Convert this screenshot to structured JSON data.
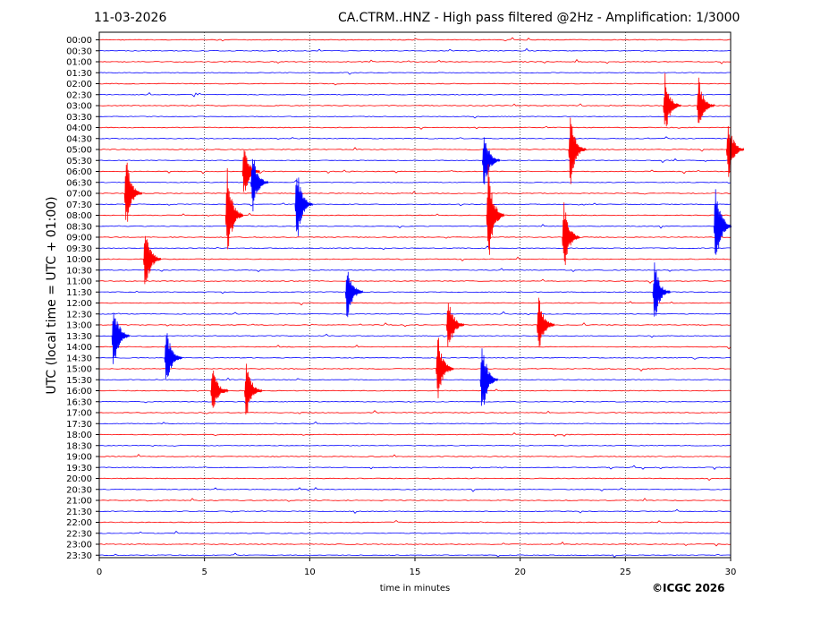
{
  "header": {
    "date": "11-03-2026",
    "title": "CA.CTRM..HNZ - High pass filtered @2Hz - Amplification: 1/3000"
  },
  "footer": {
    "copyright": "©ICGC 2026"
  },
  "chart_data": {
    "type": "line",
    "xlabel": "time in minutes",
    "ylabel": "UTC (local time = UTC + 01:00)",
    "xlim": [
      0,
      30
    ],
    "x_ticks": [
      0,
      5,
      10,
      15,
      20,
      25,
      30
    ],
    "grid": "vertical dotted at 5-minute intervals",
    "trace_colors": [
      "#ff0000",
      "#0000ff"
    ],
    "row_labels": [
      "00:00",
      "00:30",
      "01:00",
      "01:30",
      "02:00",
      "02:30",
      "03:00",
      "03:30",
      "04:00",
      "04:30",
      "05:00",
      "05:30",
      "06:00",
      "06:30",
      "07:00",
      "07:30",
      "08:00",
      "08:30",
      "09:00",
      "09:30",
      "10:00",
      "10:30",
      "11:00",
      "11:30",
      "12:00",
      "12:30",
      "13:00",
      "13:30",
      "14:00",
      "14:30",
      "15:00",
      "15:30",
      "16:00",
      "16:30",
      "17:00",
      "17:30",
      "18:00",
      "18:30",
      "19:00",
      "19:30",
      "20:00",
      "20:30",
      "21:00",
      "21:30",
      "22:00",
      "22:30",
      "23:00",
      "23:30"
    ],
    "events": [
      {
        "row": "03:00",
        "minute": 26.8,
        "amplitude_rows": 3.0
      },
      {
        "row": "03:00",
        "minute": 28.4,
        "amplitude_rows": 2.6
      },
      {
        "row": "05:00",
        "minute": 29.8,
        "amplitude_rows": 3.0
      },
      {
        "row": "05:00",
        "minute": 22.3,
        "amplitude_rows": 3.5
      },
      {
        "row": "05:30",
        "minute": 18.2,
        "amplitude_rows": 3.0
      },
      {
        "row": "06:00",
        "minute": 6.8,
        "amplitude_rows": 2.8
      },
      {
        "row": "06:30",
        "minute": 7.2,
        "amplitude_rows": 3.0
      },
      {
        "row": "07:00",
        "minute": 1.2,
        "amplitude_rows": 3.5
      },
      {
        "row": "07:30",
        "minute": 9.3,
        "amplitude_rows": 4.0
      },
      {
        "row": "08:00",
        "minute": 6.0,
        "amplitude_rows": 4.5
      },
      {
        "row": "08:00",
        "minute": 18.4,
        "amplitude_rows": 5.0
      },
      {
        "row": "08:30",
        "minute": 29.2,
        "amplitude_rows": 4.5
      },
      {
        "row": "09:00",
        "minute": 22.0,
        "amplitude_rows": 3.5
      },
      {
        "row": "10:00",
        "minute": 2.1,
        "amplitude_rows": 3.5
      },
      {
        "row": "11:30",
        "minute": 11.7,
        "amplitude_rows": 3.0
      },
      {
        "row": "11:30",
        "minute": 26.3,
        "amplitude_rows": 3.0
      },
      {
        "row": "13:30",
        "minute": 0.6,
        "amplitude_rows": 3.5
      },
      {
        "row": "14:30",
        "minute": 3.1,
        "amplitude_rows": 3.0
      },
      {
        "row": "15:00",
        "minute": 16.0,
        "amplitude_rows": 3.5
      },
      {
        "row": "15:30",
        "minute": 18.1,
        "amplitude_rows": 4.0
      },
      {
        "row": "16:00",
        "minute": 5.3,
        "amplitude_rows": 2.5
      },
      {
        "row": "16:00",
        "minute": 6.9,
        "amplitude_rows": 3.0
      },
      {
        "row": "13:00",
        "minute": 20.8,
        "amplitude_rows": 3.0
      },
      {
        "row": "13:00",
        "minute": 16.5,
        "amplitude_rows": 3.0
      }
    ]
  }
}
